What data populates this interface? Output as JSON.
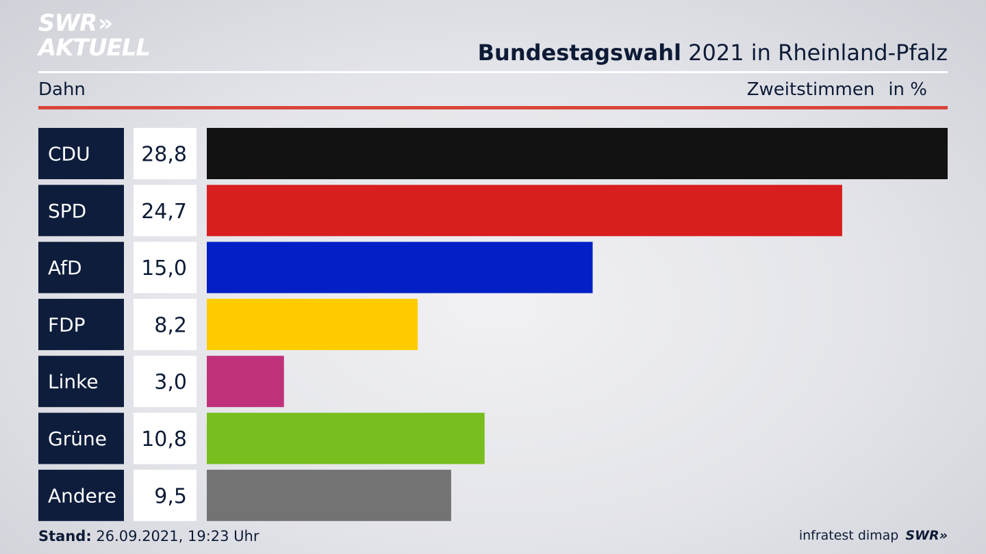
{
  "brand": {
    "line1": "SWR",
    "arrows": "»",
    "line2": "AKTUELL"
  },
  "header": {
    "title_bold": "Bundestagswahl",
    "title_rest": " 2021 in Rheinland-Pfalz",
    "region": "Dahn",
    "measure": "Zweitstimmen",
    "unit": "in %"
  },
  "chart_data": {
    "type": "bar",
    "orientation": "horizontal",
    "categories": [
      "CDU",
      "SPD",
      "AfD",
      "FDP",
      "Linke",
      "Grüne",
      "Andere"
    ],
    "values": [
      28.8,
      24.7,
      15.0,
      8.2,
      3.0,
      10.8,
      9.5
    ],
    "value_labels": [
      "28,8",
      "24,7",
      "15,0",
      "8,2",
      "3,0",
      "10,8",
      "9,5"
    ],
    "colors": [
      "#121212",
      "#d81f20",
      "#0220c6",
      "#ffcc00",
      "#c0317b",
      "#78be1e",
      "#737373"
    ],
    "xlim": [
      0,
      28.8
    ]
  },
  "footer": {
    "stand_label": "Stand:",
    "stand_value": " 26.09.2021, 19:23 Uhr",
    "source": "infratest dimap",
    "brand": "SWR»"
  },
  "theme": {
    "label_bg": "#0e1d3c",
    "value_bg": "#ffffff",
    "accent": "#d9453a"
  }
}
